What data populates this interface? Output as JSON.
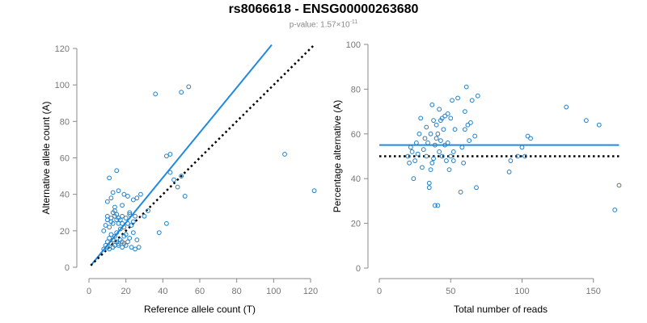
{
  "header": {
    "title": "rs8066618 - ENSG00000263680",
    "pvalue_prefix": "p-value: 1.57×10",
    "pvalue_exp": "-11"
  },
  "colors": {
    "points": "#1f7fc8",
    "fit": "#1f8ae0",
    "reference": "#000000",
    "axis": "#888888"
  },
  "chart_data": [
    {
      "type": "scatter",
      "title": "",
      "xlabel": "Reference allele count (T)",
      "ylabel": "Alternative allele count (A)",
      "xlim": [
        0,
        120
      ],
      "ylim": [
        0,
        120
      ],
      "xticks": [
        0,
        20,
        40,
        60,
        80,
        100,
        120
      ],
      "yticks": [
        0,
        20,
        40,
        60,
        80,
        100,
        120
      ],
      "grid": false,
      "lines": [
        {
          "style": "solid",
          "color": "#1f8ae0",
          "x": [
            1,
            99
          ],
          "y": [
            1,
            122
          ]
        },
        {
          "style": "dotted",
          "color": "#000000",
          "x": [
            1,
            122
          ],
          "y": [
            1,
            122
          ]
        }
      ],
      "points": [
        [
          8,
          10
        ],
        [
          9,
          12
        ],
        [
          10,
          11
        ],
        [
          10,
          14
        ],
        [
          11,
          10
        ],
        [
          11,
          16
        ],
        [
          12,
          13
        ],
        [
          12,
          18
        ],
        [
          13,
          11
        ],
        [
          13,
          15
        ],
        [
          14,
          12
        ],
        [
          14,
          17
        ],
        [
          15,
          14
        ],
        [
          15,
          19
        ],
        [
          16,
          12
        ],
        [
          16,
          13
        ],
        [
          17,
          15
        ],
        [
          17,
          21
        ],
        [
          18,
          11
        ],
        [
          18,
          14
        ],
        [
          19,
          13
        ],
        [
          19,
          17
        ],
        [
          20,
          12
        ],
        [
          20,
          18
        ],
        [
          21,
          14
        ],
        [
          22,
          16
        ],
        [
          23,
          11
        ],
        [
          24,
          19
        ],
        [
          25,
          10
        ],
        [
          26,
          15
        ],
        [
          27,
          11
        ],
        [
          8,
          20
        ],
        [
          9,
          23
        ],
        [
          10,
          26
        ],
        [
          10,
          28
        ],
        [
          11,
          22
        ],
        [
          12,
          25
        ],
        [
          12,
          27
        ],
        [
          13,
          24
        ],
        [
          13,
          30
        ],
        [
          14,
          28
        ],
        [
          14,
          31
        ],
        [
          15,
          26
        ],
        [
          15,
          29
        ],
        [
          16,
          24
        ],
        [
          16,
          27
        ],
        [
          17,
          26
        ],
        [
          18,
          24
        ],
        [
          18,
          28
        ],
        [
          19,
          22
        ],
        [
          20,
          27
        ],
        [
          21,
          24
        ],
        [
          22,
          29
        ],
        [
          23,
          23
        ],
        [
          24,
          25
        ],
        [
          25,
          28
        ],
        [
          10,
          36
        ],
        [
          11,
          49
        ],
        [
          12,
          38
        ],
        [
          13,
          41
        ],
        [
          14,
          33
        ],
        [
          15,
          53
        ],
        [
          16,
          42
        ],
        [
          18,
          34
        ],
        [
          19,
          40
        ],
        [
          21,
          39
        ],
        [
          22,
          30
        ],
        [
          24,
          37
        ],
        [
          26,
          38
        ],
        [
          28,
          40
        ],
        [
          30,
          28
        ],
        [
          32,
          31
        ],
        [
          36,
          95
        ],
        [
          38,
          19
        ],
        [
          42,
          24
        ],
        [
          42,
          61
        ],
        [
          44,
          62
        ],
        [
          44,
          52
        ],
        [
          46,
          48
        ],
        [
          48,
          44
        ],
        [
          50,
          50
        ],
        [
          50,
          96
        ],
        [
          52,
          39
        ],
        [
          54,
          99
        ],
        [
          106,
          62
        ],
        [
          122,
          42
        ]
      ]
    },
    {
      "type": "scatter",
      "title": "",
      "xlabel": "Total number of reads",
      "ylabel": "Percentage alternative (A)",
      "xlim": [
        0,
        170
      ],
      "ylim": [
        0,
        100
      ],
      "xticks": [
        0,
        50,
        100,
        150
      ],
      "yticks": [
        0,
        20,
        40,
        60,
        80,
        100
      ],
      "grid": false,
      "lines": [
        {
          "style": "solid",
          "color": "#1f8ae0",
          "x": [
            0,
            168
          ],
          "y": [
            55,
            55
          ]
        },
        {
          "style": "dotted",
          "color": "#000000",
          "x": [
            0,
            168
          ],
          "y": [
            50,
            50
          ]
        }
      ],
      "points": [
        [
          20,
          50
        ],
        [
          21,
          47
        ],
        [
          22,
          54
        ],
        [
          23,
          52
        ],
        [
          24,
          40
        ],
        [
          25,
          48
        ],
        [
          26,
          56
        ],
        [
          27,
          51
        ],
        [
          28,
          60
        ],
        [
          29,
          67
        ],
        [
          30,
          45
        ],
        [
          31,
          53
        ],
        [
          32,
          58
        ],
        [
          33,
          63
        ],
        [
          33,
          50
        ],
        [
          34,
          56
        ],
        [
          35,
          36
        ],
        [
          35,
          38
        ],
        [
          36,
          44
        ],
        [
          36,
          60
        ],
        [
          37,
          47
        ],
        [
          37,
          73
        ],
        [
          38,
          49
        ],
        [
          38,
          66
        ],
        [
          39,
          28
        ],
        [
          39,
          55
        ],
        [
          40,
          64
        ],
        [
          40,
          58
        ],
        [
          41,
          60
        ],
        [
          41,
          28
        ],
        [
          42,
          71
        ],
        [
          42,
          52
        ],
        [
          43,
          66
        ],
        [
          43,
          57
        ],
        [
          44,
          50
        ],
        [
          44,
          67
        ],
        [
          45,
          62
        ],
        [
          46,
          68
        ],
        [
          46,
          55
        ],
        [
          47,
          48
        ],
        [
          48,
          56
        ],
        [
          48,
          69
        ],
        [
          49,
          44
        ],
        [
          50,
          50
        ],
        [
          50,
          67
        ],
        [
          51,
          75
        ],
        [
          52,
          52
        ],
        [
          52,
          48
        ],
        [
          53,
          62
        ],
        [
          55,
          76
        ],
        [
          57,
          34
        ],
        [
          58,
          54
        ],
        [
          59,
          47
        ],
        [
          60,
          70
        ],
        [
          60,
          62
        ],
        [
          61,
          81
        ],
        [
          62,
          64
        ],
        [
          63,
          57
        ],
        [
          64,
          65
        ],
        [
          65,
          75
        ],
        [
          67,
          59
        ],
        [
          68,
          36
        ],
        [
          69,
          77
        ],
        [
          91,
          43
        ],
        [
          92,
          48
        ],
        [
          97,
          50
        ],
        [
          100,
          54
        ],
        [
          102,
          50
        ],
        [
          104,
          59
        ],
        [
          106,
          58
        ],
        [
          131,
          72
        ],
        [
          145,
          66
        ],
        [
          154,
          64
        ],
        [
          165,
          26
        ],
        [
          168,
          37
        ]
      ]
    }
  ]
}
